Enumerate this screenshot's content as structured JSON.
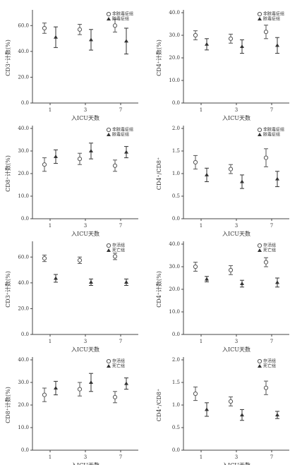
{
  "chart_data": [
    {
      "type": "errorbar",
      "ylabel": "CD3⁺计数(%)",
      "xlabel": "入ICU天数",
      "categories": [
        "1",
        "3",
        "7"
      ],
      "ylim": [
        0,
        70
      ],
      "yticks": [
        {
          "value": 0,
          "label": "0.0"
        },
        {
          "value": 20,
          "label": "20.0"
        },
        {
          "value": 40,
          "label": "40.0"
        },
        {
          "value": 60,
          "label": "60.0"
        }
      ],
      "series": [
        {
          "name": "非脓毒症组",
          "color": "#555555",
          "values": [
            58,
            57,
            60
          ],
          "errors": [
            4,
            4,
            5
          ]
        },
        {
          "name": "脓毒症组",
          "color": "#333333",
          "values": [
            51,
            49,
            48
          ],
          "errors": [
            8,
            8,
            10
          ]
        }
      ]
    },
    {
      "type": "errorbar",
      "ylabel": "CD4⁺计数(%)",
      "xlabel": "入ICU天数",
      "categories": [
        "1",
        "3",
        "7"
      ],
      "ylim": [
        0,
        40
      ],
      "yticks": [
        {
          "value": 0,
          "label": "0.0"
        },
        {
          "value": 10,
          "label": "10.0"
        },
        {
          "value": 20,
          "label": "20.0"
        },
        {
          "value": 30,
          "label": "30.0"
        },
        {
          "value": 40,
          "label": "40.0"
        }
      ],
      "series": [
        {
          "name": "非脓毒症组",
          "color": "#555555",
          "values": [
            30,
            28.5,
            31.5
          ],
          "errors": [
            2,
            2,
            3
          ]
        },
        {
          "name": "脓毒症组",
          "color": "#333333",
          "values": [
            26,
            25,
            25.5
          ],
          "errors": [
            2.5,
            3,
            3.5
          ]
        }
      ]
    },
    {
      "type": "errorbar",
      "ylabel": "CD8⁺计数(%)",
      "xlabel": "入ICU天数",
      "categories": [
        "1",
        "3",
        "7"
      ],
      "ylim": [
        0,
        40
      ],
      "yticks": [
        {
          "value": 0,
          "label": "0.0"
        },
        {
          "value": 10,
          "label": "10.0"
        },
        {
          "value": 20,
          "label": "20.0"
        },
        {
          "value": 30,
          "label": "30.0"
        },
        {
          "value": 40,
          "label": "40.0"
        }
      ],
      "series": [
        {
          "name": "非脓毒症组",
          "color": "#555555",
          "values": [
            24,
            26.5,
            23.5
          ],
          "errors": [
            3,
            2.5,
            2.5
          ]
        },
        {
          "name": "脓毒症组",
          "color": "#333333",
          "values": [
            27.5,
            30,
            29.5
          ],
          "errors": [
            3,
            3.5,
            2.5
          ]
        }
      ]
    },
    {
      "type": "errorbar",
      "ylabel": "CD4⁺/CD8⁺",
      "xlabel": "入ICU天数",
      "categories": [
        "1",
        "3",
        "7"
      ],
      "ylim": [
        0,
        2
      ],
      "yticks": [
        {
          "value": 0,
          "label": "0.0"
        },
        0.5,
        {
          "value": 1,
          "label": "1.0"
        },
        1.5,
        {
          "value": 2,
          "label": "2.0"
        }
      ],
      "series": [
        {
          "name": "非脓毒症组",
          "color": "#555555",
          "values": [
            1.25,
            1.1,
            1.35
          ],
          "errors": [
            0.15,
            0.1,
            0.2
          ]
        },
        {
          "name": "脓毒症组",
          "color": "#333333",
          "values": [
            0.97,
            0.82,
            0.88
          ],
          "errors": [
            0.15,
            0.15,
            0.17
          ]
        }
      ]
    },
    {
      "type": "errorbar",
      "ylabel": "CD3⁺计数(%)",
      "xlabel": "入ICU天数",
      "categories": [
        "1",
        "3",
        "7"
      ],
      "ylim": [
        0,
        70
      ],
      "yticks": [
        {
          "value": 0,
          "label": "0.0"
        },
        {
          "value": 20,
          "label": "20.0"
        },
        {
          "value": 40,
          "label": "40.0"
        },
        {
          "value": 60,
          "label": "60.0"
        }
      ],
      "series": [
        {
          "name": "存活组",
          "color": "#555555",
          "values": [
            59,
            57.5,
            60.5
          ],
          "errors": [
            2.5,
            2.5,
            2.5
          ]
        },
        {
          "name": "死亡组",
          "color": "#333333",
          "values": [
            43.5,
            40.5,
            40.5
          ],
          "errors": [
            3,
            2.5,
            2.5
          ]
        }
      ]
    },
    {
      "type": "errorbar",
      "ylabel": "CD4⁺计数(%)",
      "xlabel": "入ICU天数",
      "categories": [
        "1",
        "3",
        "7"
      ],
      "ylim": [
        0,
        40
      ],
      "yticks": [
        {
          "value": 0,
          "label": "0.0"
        },
        {
          "value": 10,
          "label": "10.0"
        },
        {
          "value": 20,
          "label": "20.0"
        },
        {
          "value": 30,
          "label": "30.0"
        },
        {
          "value": 40,
          "label": "40.0"
        }
      ],
      "series": [
        {
          "name": "存活组",
          "color": "#555555",
          "values": [
            30,
            28.5,
            32
          ],
          "errors": [
            2,
            2,
            2
          ]
        },
        {
          "name": "死亡组",
          "color": "#333333",
          "values": [
            24.5,
            22.5,
            23
          ],
          "errors": [
            1.2,
            1.5,
            2
          ]
        }
      ]
    },
    {
      "type": "errorbar",
      "ylabel": "CD8⁺计数(%)",
      "xlabel": "入ICU天数",
      "categories": [
        "1",
        "3",
        "7"
      ],
      "ylim": [
        0,
        40
      ],
      "yticks": [
        {
          "value": 0,
          "label": "0.0"
        },
        {
          "value": 10,
          "label": "10.0"
        },
        {
          "value": 20,
          "label": "20.0"
        },
        {
          "value": 30,
          "label": "30.0"
        },
        {
          "value": 40,
          "label": "40.0"
        }
      ],
      "series": [
        {
          "name": "存活组",
          "color": "#555555",
          "values": [
            24.5,
            27,
            23.5
          ],
          "errors": [
            3,
            3,
            2.5
          ]
        },
        {
          "name": "死亡组",
          "color": "#333333",
          "values": [
            27.5,
            30,
            29.5
          ],
          "errors": [
            3,
            4,
            2.5
          ]
        }
      ]
    },
    {
      "type": "errorbar",
      "ylabel": "CD4⁺/CD8⁺",
      "xlabel": "入ICU天数",
      "categories": [
        "1",
        "3",
        "7"
      ],
      "ylim": [
        0,
        2
      ],
      "yticks": [
        {
          "value": 0,
          "label": "0.0"
        },
        0.5,
        {
          "value": 1,
          "label": "1.0"
        },
        1.5,
        {
          "value": 2,
          "label": "2.0"
        }
      ],
      "series": [
        {
          "name": "存活组",
          "color": "#555555",
          "values": [
            1.25,
            1.08,
            1.38
          ],
          "errors": [
            0.15,
            0.1,
            0.15
          ]
        },
        {
          "name": "死亡组",
          "color": "#333333",
          "values": [
            0.9,
            0.78,
            0.78
          ],
          "errors": [
            0.15,
            0.12,
            0.08
          ]
        }
      ]
    }
  ]
}
